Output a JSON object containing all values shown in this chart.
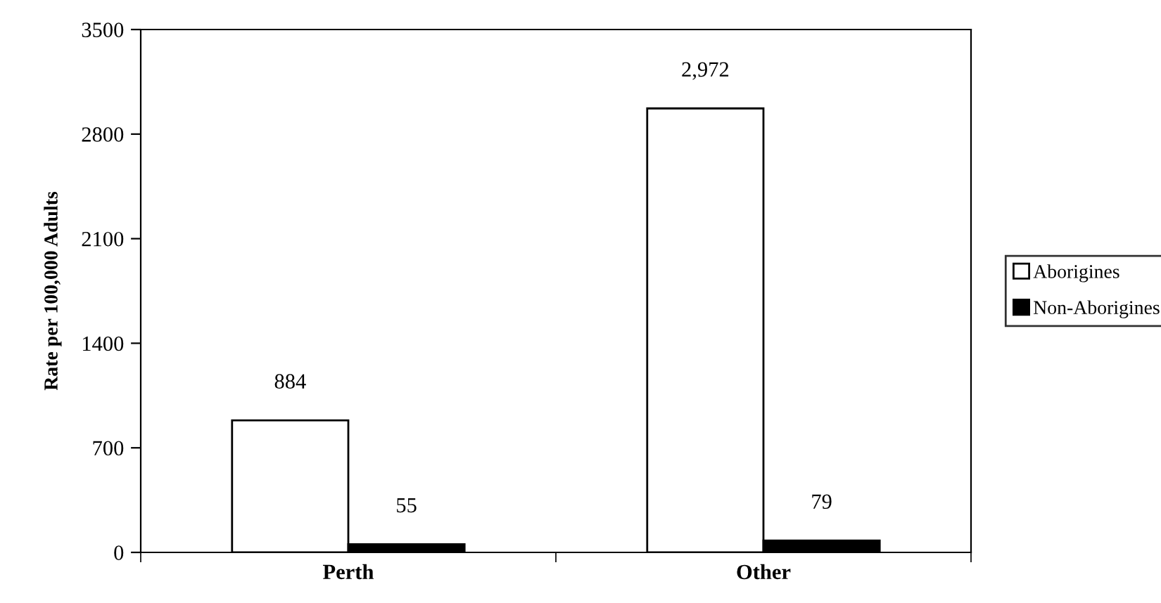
{
  "chart_data": {
    "type": "bar",
    "ylabel": "Rate per 100,000 Adults",
    "categories": [
      "Perth",
      "Other"
    ],
    "series": [
      {
        "name": "Aborigines",
        "color": "#ffffff",
        "values": [
          884,
          2972
        ],
        "value_labels": [
          "884",
          "2,972"
        ]
      },
      {
        "name": "Non-Aborigines",
        "color": "#000000",
        "values": [
          55,
          79
        ],
        "value_labels": [
          "55",
          "79"
        ]
      }
    ],
    "ylim": [
      0,
      3500
    ],
    "yticks": [
      0,
      700,
      1400,
      2100,
      2800,
      3500
    ],
    "grid": false,
    "legend": "right"
  }
}
